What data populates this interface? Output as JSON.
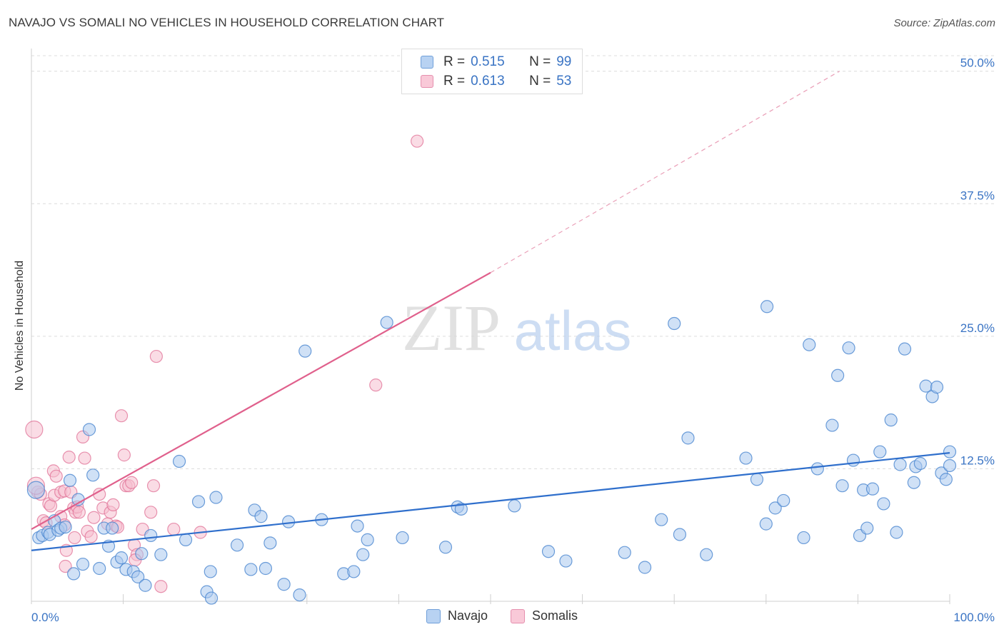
{
  "title": "NAVAJO VS SOMALI NO VEHICLES IN HOUSEHOLD CORRELATION CHART",
  "source": "Source: ZipAtlas.com",
  "watermark": {
    "zip": "ZIP",
    "atlas": "atlas"
  },
  "legend": {
    "rows": [
      {
        "r_label": "R =",
        "r_value": "0.515",
        "n_label": "N =",
        "n_value": "99"
      },
      {
        "r_label": "R =",
        "r_value": "0.613",
        "n_label": "N =",
        "n_value": "53"
      }
    ]
  },
  "chart_data": {
    "type": "scatter",
    "title": "NAVAJO VS SOMALI NO VEHICLES IN HOUSEHOLD CORRELATION CHART",
    "xlabel": "",
    "ylabel": "No Vehicles in Household",
    "xlim": [
      0,
      100
    ],
    "ylim": [
      0,
      52
    ],
    "x_tick_labels": [
      "0.0%",
      "100.0%"
    ],
    "y_ticks": [
      12.5,
      25.0,
      37.5,
      50.0
    ],
    "y_tick_labels": [
      "12.5%",
      "25.0%",
      "37.5%",
      "50.0%"
    ],
    "grid": "horizontal dashed",
    "legend_position": "top-center",
    "colors": {
      "navajo": "#4a86d0",
      "navajo_fill": "#a9c8ef",
      "somalis": "#e07096",
      "somalis_fill": "#f6bfd0"
    },
    "series": [
      {
        "name": "Navajo",
        "trend": {
          "x0": 0,
          "y0": 4.8,
          "x1": 100,
          "y1": 14.0
        },
        "points": [
          [
            0.5,
            10.5
          ],
          [
            0.8,
            6.0
          ],
          [
            1.2,
            6.2
          ],
          [
            1.8,
            6.5
          ],
          [
            2.0,
            6.3
          ],
          [
            2.5,
            7.6
          ],
          [
            2.9,
            6.7
          ],
          [
            3.2,
            6.9
          ],
          [
            3.7,
            7.0
          ],
          [
            4.2,
            11.4
          ],
          [
            4.6,
            2.6
          ],
          [
            5.1,
            9.6
          ],
          [
            5.6,
            3.5
          ],
          [
            6.3,
            16.2
          ],
          [
            6.7,
            11.9
          ],
          [
            7.4,
            3.1
          ],
          [
            7.9,
            6.9
          ],
          [
            8.4,
            5.2
          ],
          [
            8.8,
            6.9
          ],
          [
            9.3,
            3.7
          ],
          [
            9.8,
            4.1
          ],
          [
            10.3,
            3.0
          ],
          [
            11.1,
            2.8
          ],
          [
            11.6,
            2.3
          ],
          [
            12.0,
            4.5
          ],
          [
            12.4,
            1.5
          ],
          [
            13.0,
            6.2
          ],
          [
            14.1,
            4.4
          ],
          [
            16.1,
            13.2
          ],
          [
            16.8,
            5.8
          ],
          [
            18.2,
            9.4
          ],
          [
            19.5,
            2.8
          ],
          [
            20.1,
            9.8
          ],
          [
            19.1,
            0.9
          ],
          [
            19.6,
            0.3
          ],
          [
            22.4,
            5.3
          ],
          [
            23.9,
            3.0
          ],
          [
            24.3,
            8.6
          ],
          [
            25.0,
            8.0
          ],
          [
            25.5,
            3.1
          ],
          [
            26.0,
            5.5
          ],
          [
            27.5,
            1.6
          ],
          [
            28.0,
            7.5
          ],
          [
            29.2,
            0.6
          ],
          [
            29.8,
            23.6
          ],
          [
            31.6,
            7.7
          ],
          [
            34.0,
            2.6
          ],
          [
            35.1,
            2.8
          ],
          [
            35.5,
            7.1
          ],
          [
            36.1,
            4.4
          ],
          [
            36.6,
            5.8
          ],
          [
            38.7,
            26.3
          ],
          [
            40.4,
            6.0
          ],
          [
            45.1,
            5.1
          ],
          [
            46.4,
            8.9
          ],
          [
            46.8,
            8.7
          ],
          [
            52.6,
            9.0
          ],
          [
            56.3,
            4.7
          ],
          [
            58.2,
            3.8
          ],
          [
            64.6,
            4.6
          ],
          [
            66.8,
            3.2
          ],
          [
            68.6,
            7.7
          ],
          [
            70.0,
            26.2
          ],
          [
            70.6,
            6.3
          ],
          [
            71.5,
            15.4
          ],
          [
            73.5,
            4.4
          ],
          [
            77.8,
            13.5
          ],
          [
            79.0,
            11.5
          ],
          [
            80.0,
            7.3
          ],
          [
            80.1,
            27.8
          ],
          [
            81.0,
            8.8
          ],
          [
            81.9,
            9.5
          ],
          [
            84.1,
            6.0
          ],
          [
            84.7,
            24.2
          ],
          [
            85.6,
            12.5
          ],
          [
            87.2,
            16.6
          ],
          [
            87.8,
            21.3
          ],
          [
            88.3,
            10.9
          ],
          [
            89.0,
            23.9
          ],
          [
            89.5,
            13.3
          ],
          [
            90.2,
            6.2
          ],
          [
            90.6,
            10.5
          ],
          [
            91.0,
            6.9
          ],
          [
            91.6,
            10.6
          ],
          [
            92.4,
            14.1
          ],
          [
            92.8,
            9.2
          ],
          [
            93.6,
            17.1
          ],
          [
            94.2,
            6.5
          ],
          [
            94.6,
            12.9
          ],
          [
            95.1,
            23.8
          ],
          [
            96.3,
            12.7
          ],
          [
            96.8,
            13.0
          ],
          [
            96.1,
            11.2
          ],
          [
            97.4,
            20.3
          ],
          [
            98.1,
            19.3
          ],
          [
            98.6,
            20.2
          ],
          [
            99.1,
            12.1
          ],
          [
            99.6,
            11.5
          ],
          [
            100.0,
            12.8
          ],
          [
            100.0,
            14.1
          ]
        ]
      },
      {
        "name": "Somalis",
        "trend": {
          "x0": 0,
          "y0": 6.8,
          "x1": 50,
          "y1": 31.0
        },
        "trend_ext": {
          "x0": 50,
          "y0": 31.0,
          "x1": 88,
          "y1": 50.0
        },
        "points": [
          [
            0.3,
            16.2
          ],
          [
            0.7,
            10.3
          ],
          [
            1.0,
            10.1
          ],
          [
            1.3,
            7.6
          ],
          [
            1.6,
            7.4
          ],
          [
            1.9,
            9.2
          ],
          [
            2.1,
            9.0
          ],
          [
            2.4,
            12.3
          ],
          [
            2.5,
            10.0
          ],
          [
            2.7,
            11.8
          ],
          [
            3.2,
            10.3
          ],
          [
            3.2,
            8.0
          ],
          [
            3.6,
            7.2
          ],
          [
            3.6,
            10.4
          ],
          [
            3.8,
            4.8
          ],
          [
            4.1,
            13.6
          ],
          [
            4.3,
            10.3
          ],
          [
            3.7,
            3.3
          ],
          [
            4.6,
            8.8
          ],
          [
            4.7,
            6.0
          ],
          [
            4.8,
            8.4
          ],
          [
            5.0,
            8.9
          ],
          [
            5.2,
            8.4
          ],
          [
            5.6,
            15.5
          ],
          [
            5.8,
            13.5
          ],
          [
            6.1,
            6.6
          ],
          [
            6.5,
            6.1
          ],
          [
            6.8,
            7.9
          ],
          [
            7.4,
            10.1
          ],
          [
            7.8,
            8.8
          ],
          [
            8.3,
            7.3
          ],
          [
            8.6,
            8.4
          ],
          [
            8.9,
            9.1
          ],
          [
            9.2,
            7.1
          ],
          [
            9.4,
            7.0
          ],
          [
            9.8,
            17.5
          ],
          [
            10.1,
            13.8
          ],
          [
            10.3,
            10.9
          ],
          [
            10.6,
            10.9
          ],
          [
            10.9,
            11.2
          ],
          [
            11.2,
            5.3
          ],
          [
            11.5,
            4.4
          ],
          [
            11.3,
            3.9
          ],
          [
            12.1,
            6.8
          ],
          [
            13.0,
            8.4
          ],
          [
            13.3,
            10.9
          ],
          [
            13.6,
            23.1
          ],
          [
            14.1,
            1.4
          ],
          [
            15.5,
            6.8
          ],
          [
            18.4,
            6.5
          ],
          [
            37.5,
            20.4
          ],
          [
            42.0,
            43.4
          ],
          [
            0.5,
            10.9
          ]
        ]
      }
    ]
  }
}
